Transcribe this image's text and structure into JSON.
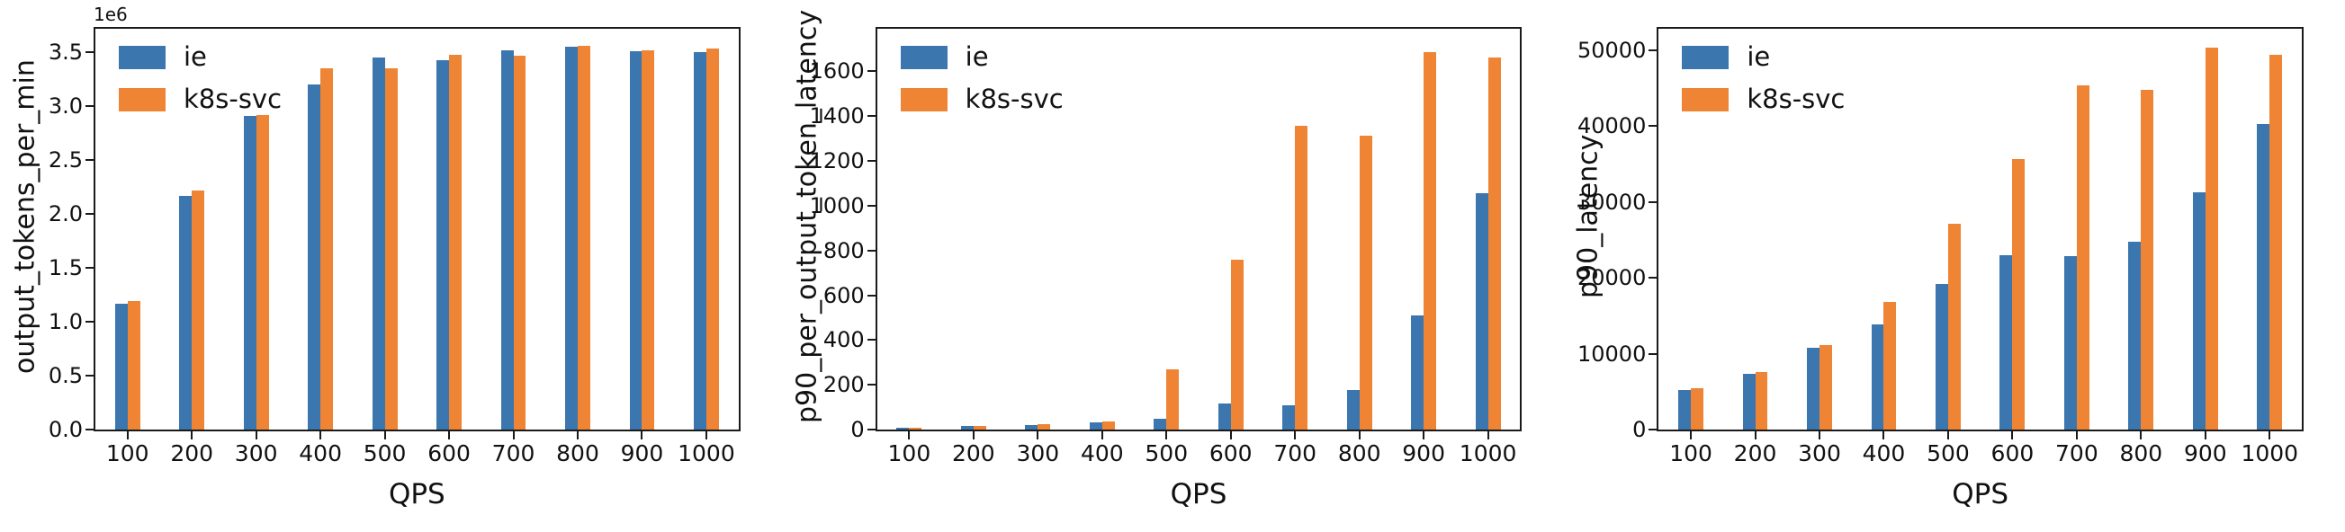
{
  "figure": {
    "background": "#ffffff",
    "axis_color": "#1a1a1a"
  },
  "colors": {
    "ie": "#3b76af",
    "k8s_svc": "#ee8434"
  },
  "chart_data": [
    {
      "type": "bar",
      "title": "",
      "ylabel": "output_tokens_per_min",
      "xlabel": "QPS",
      "offset_label": "1e6",
      "grid": false,
      "legend_position": "upper left",
      "categories": [
        "100",
        "200",
        "300",
        "400",
        "500",
        "600",
        "700",
        "800",
        "900",
        "1000"
      ],
      "ylim": [
        0,
        3720000
      ],
      "yticks": [
        0,
        500000,
        1000000,
        1500000,
        2000000,
        2500000,
        3000000,
        3500000
      ],
      "ytick_labels": [
        "0.0",
        "0.5",
        "1.0",
        "1.5",
        "2.0",
        "2.5",
        "3.0",
        "3.5"
      ],
      "series": [
        {
          "name": "ie",
          "color": "#3b76af",
          "values": [
            1170000,
            2170000,
            2910000,
            3200000,
            3450000,
            3430000,
            3520000,
            3550000,
            3510000,
            3500000
          ]
        },
        {
          "name": "k8s-svc",
          "color": "#ee8434",
          "values": [
            1190000,
            2220000,
            2920000,
            3350000,
            3350000,
            3480000,
            3470000,
            3560000,
            3520000,
            3540000
          ]
        }
      ]
    },
    {
      "type": "bar",
      "title": "",
      "ylabel": "p90_per_output_token_latency",
      "xlabel": "QPS",
      "grid": false,
      "legend_position": "upper left",
      "categories": [
        "100",
        "200",
        "300",
        "400",
        "500",
        "600",
        "700",
        "800",
        "900",
        "1000"
      ],
      "ylim": [
        0,
        1790
      ],
      "yticks": [
        0,
        200,
        400,
        600,
        800,
        1000,
        1200,
        1400,
        1600
      ],
      "ytick_labels": [
        "0",
        "200",
        "400",
        "600",
        "800",
        "1000",
        "1200",
        "1400",
        "1600"
      ],
      "series": [
        {
          "name": "ie",
          "color": "#3b76af",
          "values": [
            8,
            15,
            22,
            32,
            47,
            115,
            107,
            176,
            510,
            1055
          ]
        },
        {
          "name": "k8s-svc",
          "color": "#ee8434",
          "values": [
            9,
            16,
            23,
            37,
            268,
            760,
            1355,
            1312,
            1685,
            1660
          ]
        }
      ]
    },
    {
      "type": "bar",
      "title": "",
      "ylabel": "p90_latency",
      "xlabel": "QPS",
      "grid": false,
      "legend_position": "upper left",
      "categories": [
        "100",
        "200",
        "300",
        "400",
        "500",
        "600",
        "700",
        "800",
        "900",
        "1000"
      ],
      "ylim": [
        0,
        52800
      ],
      "yticks": [
        0,
        10000,
        20000,
        30000,
        40000,
        50000
      ],
      "ytick_labels": [
        "0",
        "10000",
        "20000",
        "30000",
        "40000",
        "50000"
      ],
      "series": [
        {
          "name": "ie",
          "color": "#3b76af",
          "values": [
            5250,
            7300,
            10800,
            13900,
            19200,
            23000,
            22800,
            24700,
            31300,
            40200
          ]
        },
        {
          "name": "k8s-svc",
          "color": "#ee8434",
          "values": [
            5400,
            7550,
            11100,
            16800,
            27100,
            35600,
            45300,
            44800,
            50300,
            49400
          ]
        }
      ]
    }
  ]
}
